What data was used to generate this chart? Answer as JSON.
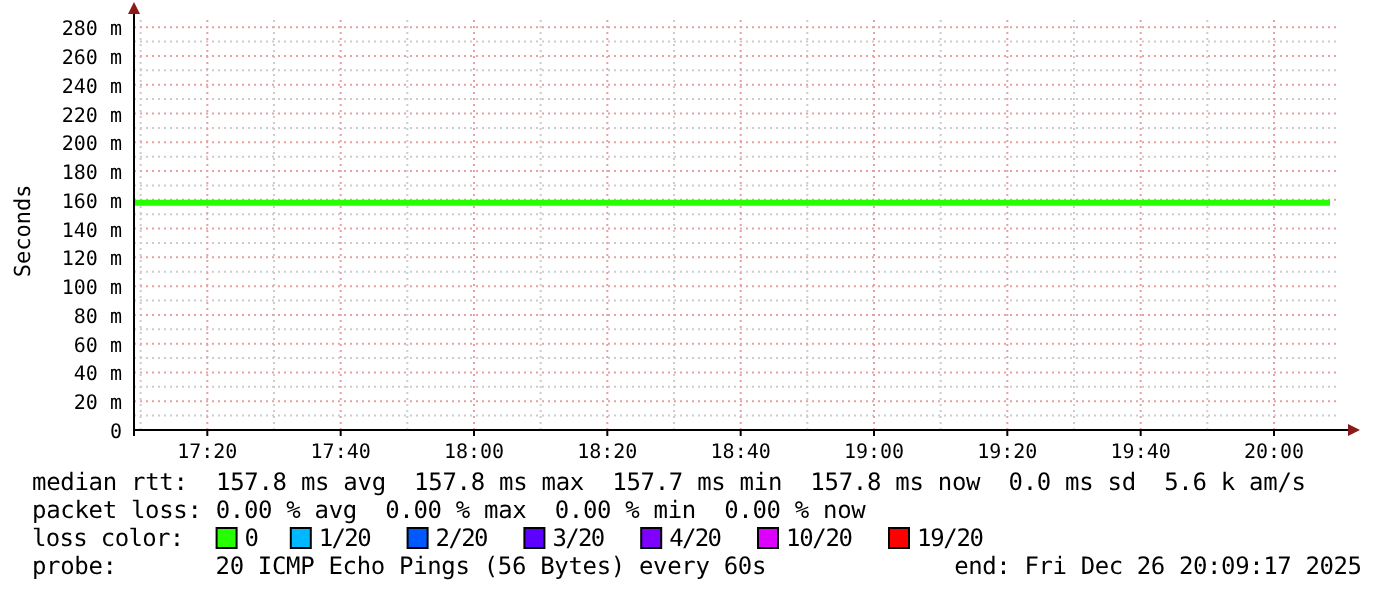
{
  "chart_data": {
    "type": "line",
    "ylabel": "Seconds",
    "legend_title": "loss color:",
    "legend": "bottom",
    "grid": true,
    "line_style": "solid",
    "xlim": [
      17.15,
      20.155
    ],
    "xticks": [
      {
        "value": 17.3333,
        "label": "17:20"
      },
      {
        "value": 17.6667,
        "label": "17:40"
      },
      {
        "value": 18,
        "label": "18:00"
      },
      {
        "value": 18.3333,
        "label": "18:20"
      },
      {
        "value": 18.6667,
        "label": "18:40"
      },
      {
        "value": 19,
        "label": "19:00"
      },
      {
        "value": 19.3333,
        "label": "19:20"
      },
      {
        "value": 19.6667,
        "label": "19:40"
      },
      {
        "value": 20,
        "label": "20:00"
      }
    ],
    "ylim": [
      0,
      285
    ],
    "yticks": [
      0,
      {
        "value": 20,
        "label": "20 m"
      },
      {
        "value": 40,
        "label": "40 m"
      },
      {
        "value": 60,
        "label": "60 m"
      },
      {
        "value": 80,
        "label": "80 m"
      },
      {
        "value": 100,
        "label": "100 m"
      },
      {
        "value": 120,
        "label": "120 m"
      },
      {
        "value": 140,
        "label": "140 m"
      },
      {
        "value": 160,
        "label": "160 m"
      },
      {
        "value": 180,
        "label": "180 m"
      },
      {
        "value": 200,
        "label": "200 m"
      },
      {
        "value": 220,
        "label": "220 m"
      },
      {
        "value": 240,
        "label": "240 m"
      },
      {
        "value": 260,
        "label": "260 m"
      },
      {
        "value": 280,
        "label": "280 m"
      }
    ],
    "x": [
      17.15,
      20.14
    ],
    "series": [
      {
        "name": "0",
        "color": "#26ff00",
        "values": [
          158,
          158
        ]
      },
      {
        "name": "1/20",
        "color": "#00b8ff",
        "values": [
          null,
          null
        ]
      },
      {
        "name": "2/20",
        "color": "#0059ff",
        "values": [
          null,
          null
        ]
      },
      {
        "name": "3/20",
        "color": "#5e00ff",
        "values": [
          null,
          null
        ]
      },
      {
        "name": "4/20",
        "color": "#7e00ff",
        "values": [
          null,
          null
        ]
      },
      {
        "name": "10/20",
        "color": "#dd00ff",
        "values": [
          null,
          null
        ]
      },
      {
        "name": "19/20",
        "color": "#ff0000",
        "values": [
          null,
          null
        ]
      }
    ],
    "annotations": [
      "median rtt:  157.8 ms avg  157.8 ms max  157.7 ms min  157.8 ms now  0.0 ms sd  5.6 k am/s",
      "packet loss: 0.00 % avg  0.00 % max  0.00 % min  0.00 % now",
      "probe:       20 ICMP Echo Pings (56 Bytes) every 60s",
      "end: Fri Dec 26 20:09:17 2025"
    ]
  }
}
